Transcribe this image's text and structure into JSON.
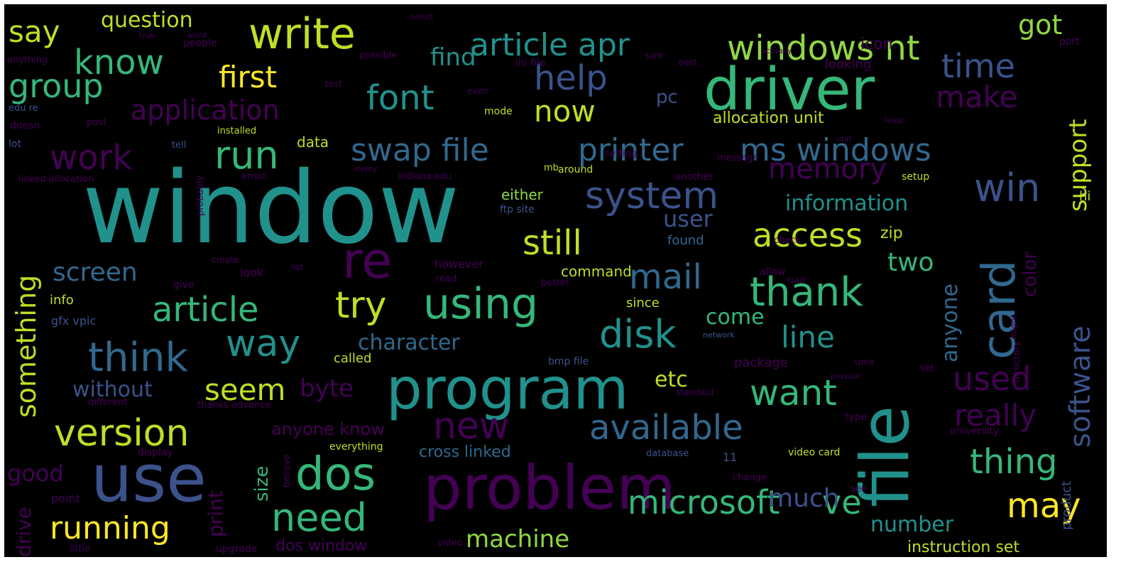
{
  "palette": {
    "background": "#000000",
    "frame": "#ffffff",
    "purple": "#440154",
    "indigo": "#3b528b",
    "blue": "#31688e",
    "teal": "#21918c",
    "green": "#35b779",
    "lime": "#90d743",
    "yellow": "#fde725"
  },
  "words": [
    "window",
    "driver",
    "file",
    "problem",
    "use",
    "program",
    "write",
    "card",
    "dos",
    "using",
    "windows nt",
    "article apr",
    "know",
    "help",
    "group",
    "swap file",
    "printer",
    "ms windows",
    "system",
    "font",
    "thank",
    "microsoft",
    "ve",
    "need",
    "version",
    "new",
    "available",
    "think",
    "work",
    "run",
    "time",
    "disk",
    "access",
    "still",
    "mail",
    "article",
    "try",
    "way",
    "seem",
    "want",
    "first",
    "now",
    "make",
    "application",
    "re",
    "memory",
    "win",
    "software",
    "something",
    "support",
    "color",
    "used",
    "really",
    "thing",
    "may",
    "running",
    "machine",
    "number",
    "screen",
    "information",
    "character",
    "line",
    "anyone",
    "two",
    "got",
    "say",
    "question",
    "find",
    "byte",
    "etc",
    "come",
    "without",
    "anyone know",
    "good",
    "print",
    "size",
    "much",
    "user",
    "cross linked",
    "allocation unit",
    "pc",
    "drive",
    "instruction set",
    "dos window",
    "icon",
    "looking",
    "data",
    "zip",
    "command",
    "however",
    "found",
    "either",
    "ftp site",
    "setup",
    "product",
    "point",
    "package",
    "directory",
    "university",
    "unix",
    "since",
    "called",
    "bmp file",
    "give",
    "look",
    "info",
    "gfx vpic",
    "hi",
    "little",
    "upgrade",
    "everything",
    "believe",
    "display",
    "video card",
    "database",
    "mode",
    "around",
    "thanks advance",
    "different",
    "email",
    "edu re",
    "doesn",
    "lot",
    "installed",
    "linked allocation",
    "post",
    "tell",
    "another",
    "setting",
    "message",
    "even",
    "text",
    "people",
    "possible",
    "ini file",
    "sure",
    "best",
    "actually",
    "anything",
    "port",
    "true",
    "word",
    "select",
    "indiana edu",
    "every",
    "probably",
    "11",
    "check",
    "allow",
    "network",
    "better",
    "read",
    "list",
    "create",
    "load",
    "type",
    "change",
    "standard",
    "provide",
    "set",
    "see",
    "least",
    "video",
    "might",
    "unit",
    "mb"
  ]
}
